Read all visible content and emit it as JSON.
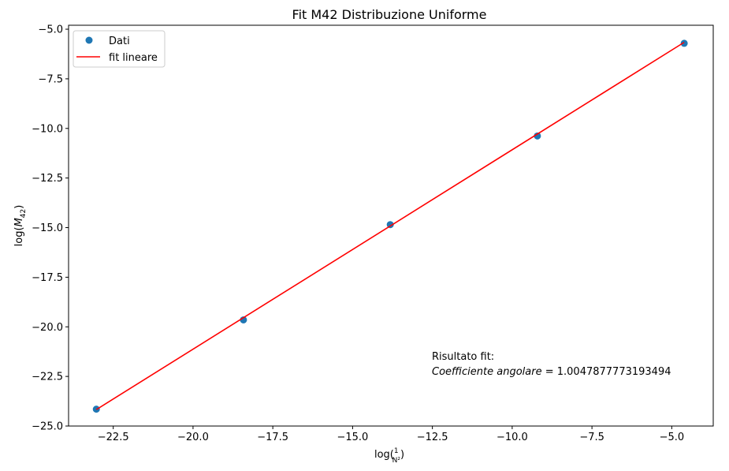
{
  "chart_data": {
    "type": "scatter",
    "title": "Fit M42 Distribuzione Uniforme",
    "xlabel_parts": [
      "log(",
      "1",
      "N²",
      ")"
    ],
    "ylabel_parts": [
      "log(",
      "M",
      "42",
      ")"
    ],
    "xlim": [
      -23.9,
      -3.7
    ],
    "ylim": [
      -25.0,
      -4.8
    ],
    "x_ticks": [
      -22.5,
      -20.0,
      -17.5,
      -15.0,
      -12.5,
      -10.0,
      -7.5,
      -5.0
    ],
    "x_tick_labels": [
      "−22.5",
      "−20.0",
      "−17.5",
      "−15.0",
      "−12.5",
      "−10.0",
      "−7.5",
      "−5.0"
    ],
    "y_ticks": [
      -5.0,
      -7.5,
      -10.0,
      -12.5,
      -15.0,
      -17.5,
      -20.0,
      -22.5,
      -25.0
    ],
    "y_tick_labels": [
      "−5.0",
      "−7.5",
      "−10.0",
      "−12.5",
      "−15.0",
      "−17.5",
      "−20.0",
      "−22.5",
      "−25.0"
    ],
    "grid": false,
    "legend_position": "top-left",
    "series": [
      {
        "name": "Dati",
        "kind": "scatter",
        "color": "#1f77b4",
        "x": [
          -23.03,
          -18.42,
          -13.82,
          -9.21,
          -4.61
        ],
        "y": [
          -24.15,
          -19.65,
          -14.85,
          -10.38,
          -5.71
        ]
      },
      {
        "name": "fit lineare",
        "kind": "line",
        "color": "#ff0000",
        "x": [
          -23.03,
          -4.61
        ],
        "y": [
          -24.17,
          -5.66
        ]
      }
    ],
    "annotation": {
      "line1": "Risultato fit:",
      "line2_italic": "Coefficiente angolare",
      "line2_value": " = 1.0047877773193494"
    }
  }
}
